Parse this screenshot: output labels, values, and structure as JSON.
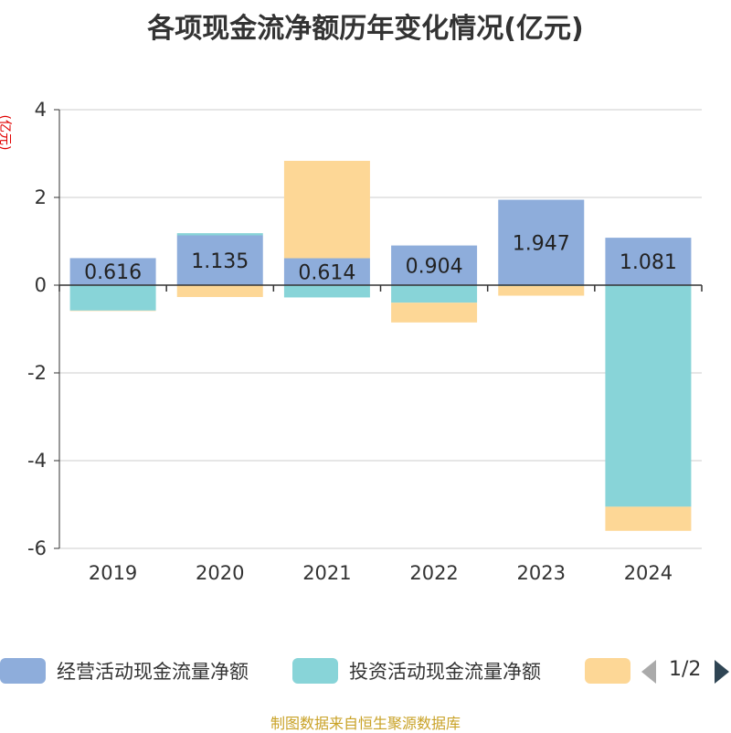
{
  "chart_data": {
    "type": "bar",
    "title": "各项现金流净额历年变化情况(亿元)",
    "y_unit": "(亿元)",
    "categories": [
      "2019",
      "2020",
      "2021",
      "2022",
      "2023",
      "2024"
    ],
    "ylim": [
      -6,
      4
    ],
    "y_ticks": [
      4,
      2,
      0,
      -2,
      -4,
      -6
    ],
    "grid": true,
    "legend_position": "bottom",
    "series": [
      {
        "name": "经营活动现金流量净额",
        "color": "#8eaddb",
        "values": [
          0.616,
          1.135,
          0.614,
          0.904,
          1.947,
          1.081
        ]
      },
      {
        "name": "投资活动现金流量净额",
        "color": "#88d4d8",
        "values": [
          -0.58,
          0.05,
          -0.28,
          -0.4,
          -0.02,
          -5.05
        ]
      },
      {
        "name": "",
        "color": "#fdd796",
        "values": [
          -0.01,
          -0.27,
          2.22,
          -0.45,
          -0.22,
          -0.55
        ]
      }
    ],
    "data_labels": [
      "0.616",
      "1.135",
      "0.614",
      "0.904",
      "1.947",
      "1.081"
    ]
  },
  "legend": {
    "page": "1/2"
  },
  "source": "制图数据来自恒生聚源数据库"
}
